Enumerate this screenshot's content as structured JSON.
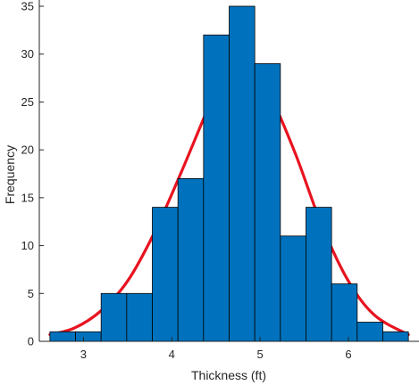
{
  "chart_data": {
    "type": "bar",
    "subtype": "histogram",
    "xlabel": "Thickness (ft)",
    "ylabel": "Frequency",
    "xlim": [
      2.5,
      6.8
    ],
    "ylim": [
      0,
      35
    ],
    "xticks": [
      3,
      4,
      5,
      6
    ],
    "yticks": [
      0,
      5,
      10,
      15,
      20,
      25,
      30,
      35
    ],
    "grid": false,
    "bin_width": 0.29,
    "bins": [
      {
        "start": 2.62,
        "end": 2.91,
        "value": 1
      },
      {
        "start": 2.91,
        "end": 3.2,
        "value": 1
      },
      {
        "start": 3.2,
        "end": 3.49,
        "value": 5
      },
      {
        "start": 3.49,
        "end": 3.78,
        "value": 5
      },
      {
        "start": 3.78,
        "end": 4.07,
        "value": 14
      },
      {
        "start": 4.07,
        "end": 4.36,
        "value": 17
      },
      {
        "start": 4.36,
        "end": 4.65,
        "value": 32
      },
      {
        "start": 4.65,
        "end": 4.94,
        "value": 35
      },
      {
        "start": 4.94,
        "end": 5.23,
        "value": 29
      },
      {
        "start": 5.23,
        "end": 5.52,
        "value": 11
      },
      {
        "start": 5.52,
        "end": 5.81,
        "value": 14
      },
      {
        "start": 5.81,
        "end": 6.1,
        "value": 6
      },
      {
        "start": 6.1,
        "end": 6.39,
        "value": 2
      },
      {
        "start": 6.39,
        "end": 6.68,
        "value": 1
      }
    ],
    "fit_curve": {
      "type": "normal",
      "mean": 4.75,
      "std": 0.62,
      "x": [
        2.62,
        2.9,
        3.2,
        3.5,
        3.8,
        4.1,
        4.4,
        4.6,
        4.75,
        4.9,
        5.1,
        5.4,
        5.7,
        6.0,
        6.3,
        6.68
      ],
      "y": [
        0.7,
        1.4,
        3.2,
        6.3,
        11.3,
        17.5,
        24.1,
        28.1,
        29.5,
        28.8,
        26.0,
        19.6,
        12.1,
        6.3,
        2.7,
        0.7
      ]
    },
    "colors": {
      "bar_fill": "#0072BD",
      "bar_edge": "#000000",
      "curve": "#E8131F",
      "axis": "#262626"
    }
  }
}
